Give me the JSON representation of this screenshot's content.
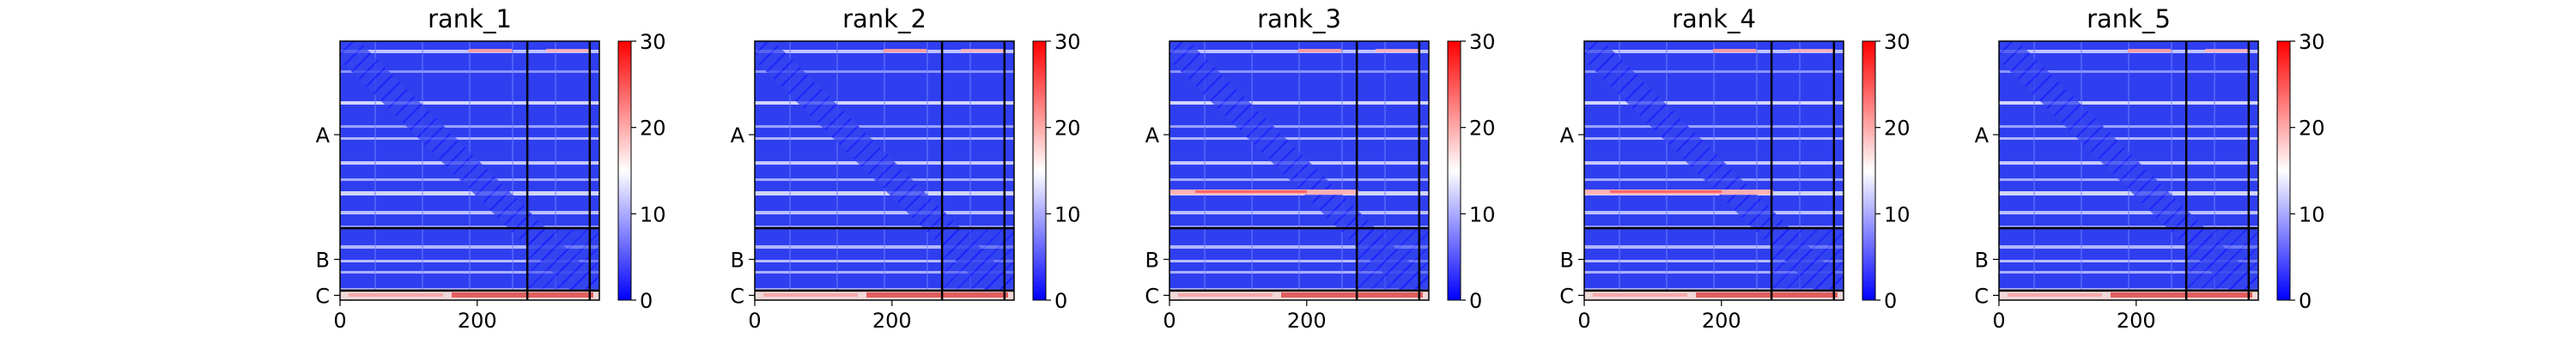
{
  "chart_data": {
    "type": "heatmap",
    "colormap": {
      "low": "#0000ff",
      "mid": "#ffffff",
      "high": "#ff0000"
    },
    "value_range": [
      0,
      30
    ],
    "colorbar_ticks": [
      "0",
      "10",
      "20",
      "30"
    ],
    "x_tick_labels": [
      "0",
      "200"
    ],
    "x_ticks": [
      0,
      200
    ],
    "x_range": [
      0,
      378
    ],
    "chain_labels": [
      "A",
      "B",
      "C"
    ],
    "chain_boundaries": [
      273,
      364
    ],
    "grid": false,
    "panels": [
      {
        "title": "rank_1",
        "red_row": false
      },
      {
        "title": "rank_2",
        "red_row": false
      },
      {
        "title": "rank_3",
        "red_row": true
      },
      {
        "title": "rank_4",
        "red_row": true
      },
      {
        "title": "rank_5",
        "red_row": false
      }
    ]
  }
}
